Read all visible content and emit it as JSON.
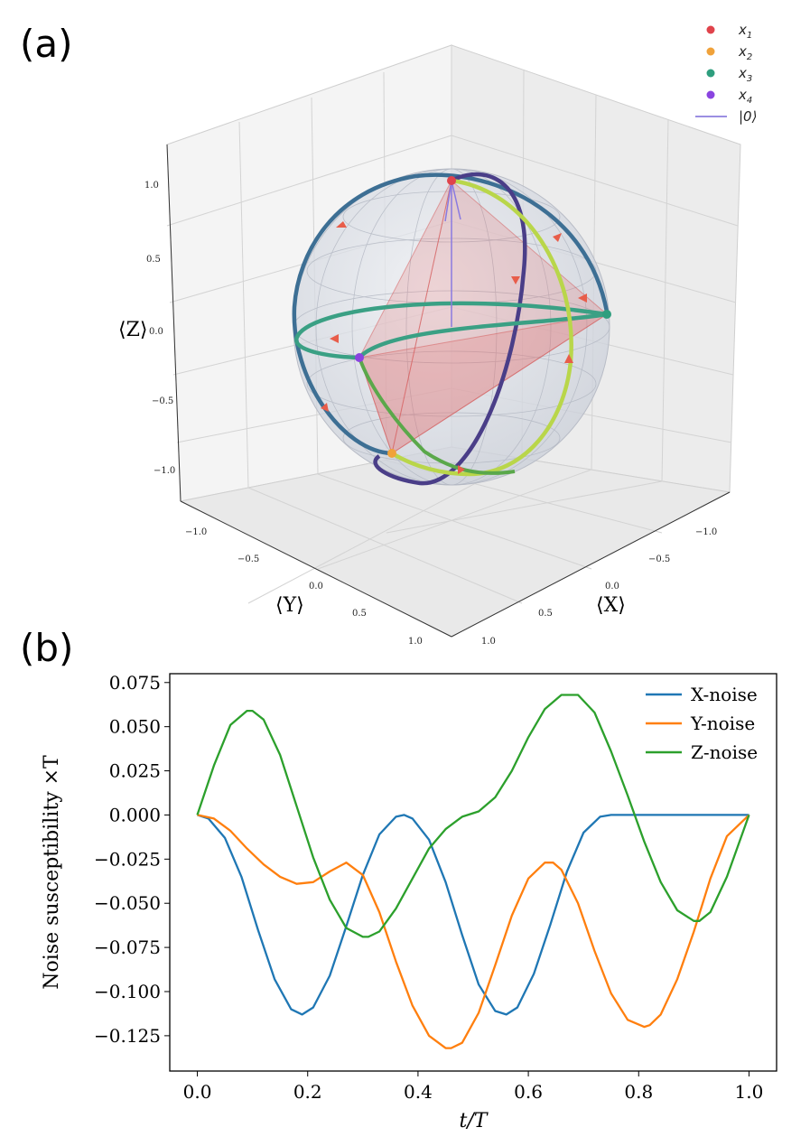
{
  "panel_a": {
    "letter": "(a)",
    "axis_labels": {
      "z": "⟨Z⟩",
      "y": "⟨Y⟩",
      "x": "⟨X⟩"
    },
    "z_ticks": [
      "1.0",
      "0.5",
      "0.0",
      "−0.5",
      "−1.0"
    ],
    "y_ticks": [
      "−1.0",
      "−0.5",
      "0.0",
      "0.5",
      "1.0"
    ],
    "x_ticks": [
      "−1.0",
      "−0.5",
      "0.0",
      "0.5",
      "1.0"
    ],
    "legend": [
      {
        "label": "x",
        "sub": "1",
        "color": "#e0434b",
        "kind": "dot"
      },
      {
        "label": "x",
        "sub": "2",
        "color": "#f0a23a",
        "kind": "dot"
      },
      {
        "label": "x",
        "sub": "3",
        "color": "#2e9e7e",
        "kind": "dot"
      },
      {
        "label": "x",
        "sub": "4",
        "color": "#8a44e0",
        "kind": "dot"
      },
      {
        "label": "|0⟩",
        "sub": "",
        "color": "#7a6ad8",
        "kind": "line"
      }
    ]
  },
  "panel_b": {
    "letter": "(b)"
  },
  "chart_data": {
    "type": "line",
    "title": "",
    "xlabel": "t/T",
    "ylabel": "Noise susceptibility ×T",
    "xlim": [
      -0.05,
      1.05
    ],
    "ylim": [
      -0.145,
      0.08
    ],
    "x_ticks": [
      0.0,
      0.2,
      0.4,
      0.6,
      0.8,
      1.0
    ],
    "x_tick_labels": [
      "0.0",
      "0.2",
      "0.4",
      "0.6",
      "0.8",
      "1.0"
    ],
    "y_ticks": [
      0.075,
      0.05,
      0.025,
      0.0,
      -0.025,
      -0.05,
      -0.075,
      -0.1,
      -0.125
    ],
    "y_tick_labels": [
      "0.075",
      "0.050",
      "0.025",
      "0.000",
      "−0.025",
      "−0.050",
      "−0.075",
      "−0.100",
      "−0.125"
    ],
    "legend_position": "top-right",
    "grid": false,
    "series": [
      {
        "name": "X-noise",
        "color": "#1f77b4",
        "x": [
          0.0,
          0.02,
          0.05,
          0.08,
          0.11,
          0.14,
          0.17,
          0.19,
          0.21,
          0.24,
          0.27,
          0.3,
          0.33,
          0.36,
          0.375,
          0.39,
          0.42,
          0.45,
          0.48,
          0.51,
          0.54,
          0.56,
          0.58,
          0.61,
          0.64,
          0.67,
          0.7,
          0.73,
          0.75,
          0.8,
          0.85,
          0.9,
          0.95,
          1.0
        ],
        "y": [
          0.0,
          -0.002,
          -0.013,
          -0.035,
          -0.065,
          -0.093,
          -0.11,
          -0.113,
          -0.109,
          -0.091,
          -0.063,
          -0.034,
          -0.011,
          -0.001,
          0.0,
          -0.002,
          -0.014,
          -0.038,
          -0.068,
          -0.096,
          -0.111,
          -0.113,
          -0.109,
          -0.09,
          -0.062,
          -0.032,
          -0.01,
          -0.001,
          0.0,
          0.0,
          0.0,
          0.0,
          0.0,
          0.0
        ]
      },
      {
        "name": "Y-noise",
        "color": "#ff7f0e",
        "x": [
          0.0,
          0.03,
          0.06,
          0.09,
          0.12,
          0.15,
          0.18,
          0.21,
          0.24,
          0.27,
          0.3,
          0.33,
          0.36,
          0.39,
          0.42,
          0.45,
          0.46,
          0.48,
          0.51,
          0.54,
          0.57,
          0.6,
          0.63,
          0.645,
          0.66,
          0.69,
          0.72,
          0.75,
          0.78,
          0.81,
          0.82,
          0.84,
          0.87,
          0.9,
          0.93,
          0.96,
          1.0
        ],
        "y": [
          0.0,
          -0.002,
          -0.009,
          -0.019,
          -0.028,
          -0.035,
          -0.039,
          -0.038,
          -0.032,
          -0.027,
          -0.034,
          -0.055,
          -0.083,
          -0.108,
          -0.125,
          -0.132,
          -0.132,
          -0.129,
          -0.112,
          -0.085,
          -0.057,
          -0.036,
          -0.027,
          -0.027,
          -0.031,
          -0.05,
          -0.077,
          -0.101,
          -0.116,
          -0.12,
          -0.119,
          -0.113,
          -0.093,
          -0.066,
          -0.036,
          -0.012,
          0.0
        ]
      },
      {
        "name": "Z-noise",
        "color": "#2ca02c",
        "x": [
          0.0,
          0.03,
          0.06,
          0.09,
          0.1,
          0.12,
          0.15,
          0.18,
          0.21,
          0.24,
          0.27,
          0.3,
          0.31,
          0.33,
          0.36,
          0.39,
          0.42,
          0.45,
          0.48,
          0.51,
          0.54,
          0.57,
          0.6,
          0.63,
          0.66,
          0.69,
          0.72,
          0.75,
          0.78,
          0.81,
          0.84,
          0.87,
          0.9,
          0.91,
          0.93,
          0.96,
          1.0
        ],
        "y": [
          0.0,
          0.028,
          0.051,
          0.059,
          0.059,
          0.054,
          0.034,
          0.005,
          -0.024,
          -0.048,
          -0.064,
          -0.069,
          -0.069,
          -0.066,
          -0.053,
          -0.036,
          -0.019,
          -0.008,
          -0.001,
          0.002,
          0.01,
          0.025,
          0.044,
          0.06,
          0.068,
          0.068,
          0.058,
          0.036,
          0.011,
          -0.015,
          -0.038,
          -0.054,
          -0.06,
          -0.06,
          -0.055,
          -0.035,
          0.0
        ]
      }
    ]
  }
}
